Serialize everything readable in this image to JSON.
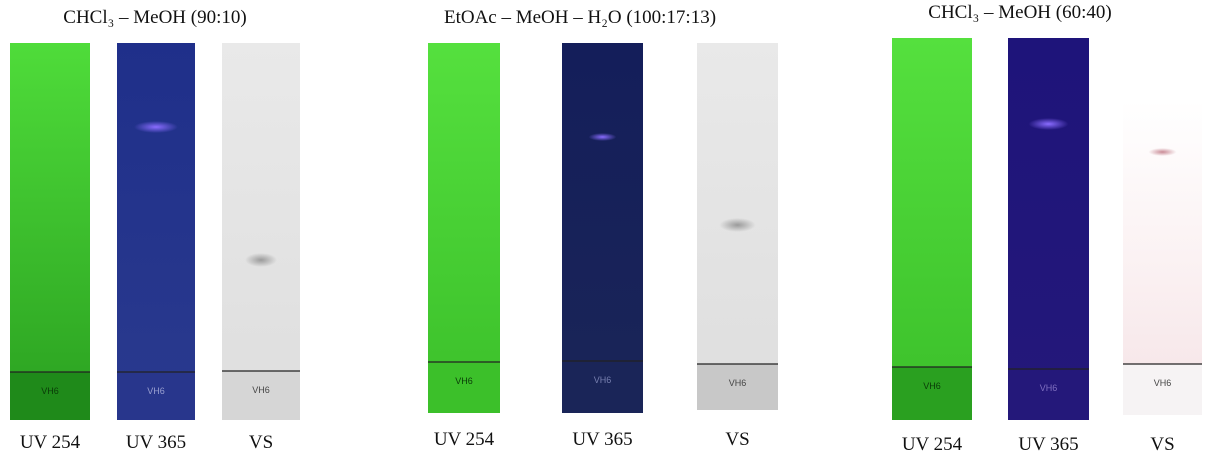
{
  "panels": [
    {
      "title": "CHCl₃ – MeOH (90:10)",
      "plates": [
        {
          "label": "UV 254",
          "sample": "VH6"
        },
        {
          "label": "UV 365",
          "sample": "VH6"
        },
        {
          "label": "VS",
          "sample": "VH6"
        }
      ]
    },
    {
      "title": "EtOAc – MeOH – H₂O (100:17:13)",
      "plates": [
        {
          "label": "UV 254",
          "sample": "VH6"
        },
        {
          "label": "UV 365",
          "sample": "VH6"
        },
        {
          "label": "VS",
          "sample": "VH6"
        }
      ]
    },
    {
      "title": "CHCl₃ – MeOH (60:40)",
      "plates": [
        {
          "label": "UV 254",
          "sample": "VH6"
        },
        {
          "label": "UV 365",
          "sample": "VH6"
        },
        {
          "label": "VS",
          "sample": "VH6"
        }
      ]
    }
  ]
}
